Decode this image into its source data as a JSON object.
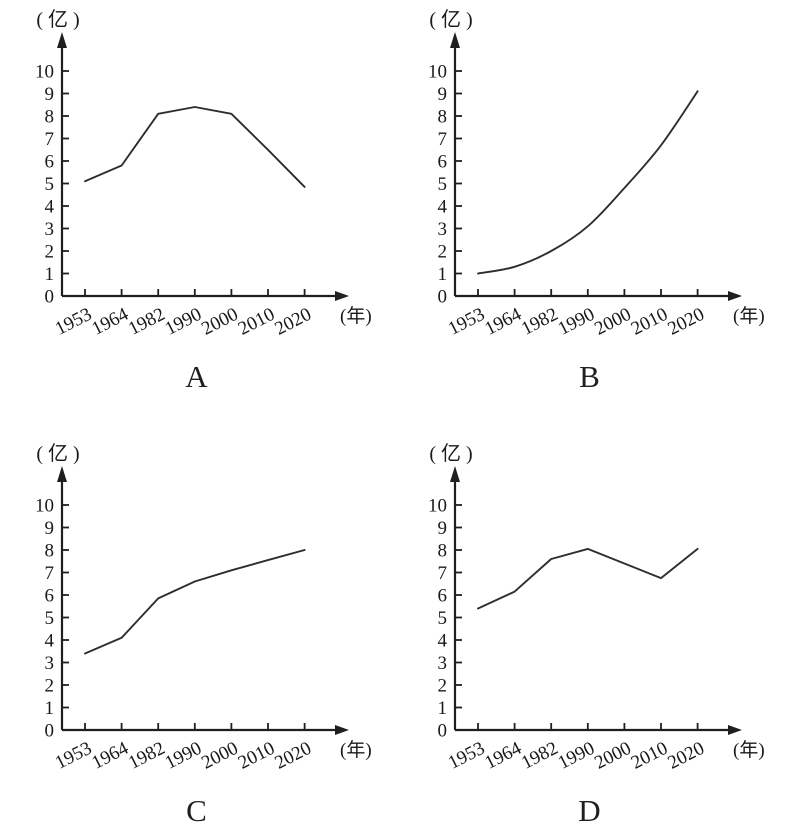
{
  "page": {
    "background_color": "#ffffff",
    "text_color": "#1a1a1a"
  },
  "chart_data": [
    {
      "type": "line",
      "caption": "A",
      "y_unit_label": "( 亿 )",
      "x_unit_label": "(年)",
      "categories": [
        "1953",
        "1964",
        "1982",
        "1990",
        "2000",
        "2010",
        "2020"
      ],
      "values": [
        5.1,
        5.8,
        8.1,
        8.4,
        8.1,
        6.5,
        4.85
      ],
      "y_ticks": [
        0,
        1,
        2,
        3,
        4,
        5,
        6,
        7,
        8,
        9,
        10
      ],
      "ylim": [
        0,
        10
      ],
      "line_shape": "straight",
      "grid": false,
      "legend": "none",
      "line_color": "#2e2e2e",
      "axis_color": "#1f1f1f"
    },
    {
      "type": "line",
      "caption": "B",
      "y_unit_label": "( 亿 )",
      "x_unit_label": "(年)",
      "categories": [
        "1953",
        "1964",
        "1982",
        "1990",
        "2000",
        "2010",
        "2020"
      ],
      "values": [
        1.0,
        1.3,
        2.0,
        3.1,
        4.8,
        6.7,
        9.1
      ],
      "y_ticks": [
        0,
        1,
        2,
        3,
        4,
        5,
        6,
        7,
        8,
        9,
        10
      ],
      "ylim": [
        0,
        10
      ],
      "line_shape": "smooth",
      "grid": false,
      "legend": "none",
      "line_color": "#2e2e2e",
      "axis_color": "#1f1f1f"
    },
    {
      "type": "line",
      "caption": "C",
      "y_unit_label": "( 亿 )",
      "x_unit_label": "(年)",
      "categories": [
        "1953",
        "1964",
        "1982",
        "1990",
        "2000",
        "2010",
        "2020"
      ],
      "values": [
        3.4,
        4.1,
        5.85,
        6.6,
        7.1,
        7.55,
        8.0
      ],
      "y_ticks": [
        0,
        1,
        2,
        3,
        4,
        5,
        6,
        7,
        8,
        9,
        10
      ],
      "ylim": [
        0,
        10
      ],
      "line_shape": "straight",
      "grid": false,
      "legend": "none",
      "line_color": "#2e2e2e",
      "axis_color": "#1f1f1f"
    },
    {
      "type": "line",
      "caption": "D",
      "y_unit_label": "( 亿 )",
      "x_unit_label": "(年)",
      "categories": [
        "1953",
        "1964",
        "1982",
        "1990",
        "2000",
        "2010",
        "2020"
      ],
      "values": [
        5.4,
        6.15,
        7.6,
        8.05,
        7.4,
        6.75,
        8.05
      ],
      "y_ticks": [
        0,
        1,
        2,
        3,
        4,
        5,
        6,
        7,
        8,
        9,
        10
      ],
      "ylim": [
        0,
        10
      ],
      "line_shape": "straight",
      "grid": false,
      "legend": "none",
      "line_color": "#2e2e2e",
      "axis_color": "#1f1f1f"
    }
  ]
}
